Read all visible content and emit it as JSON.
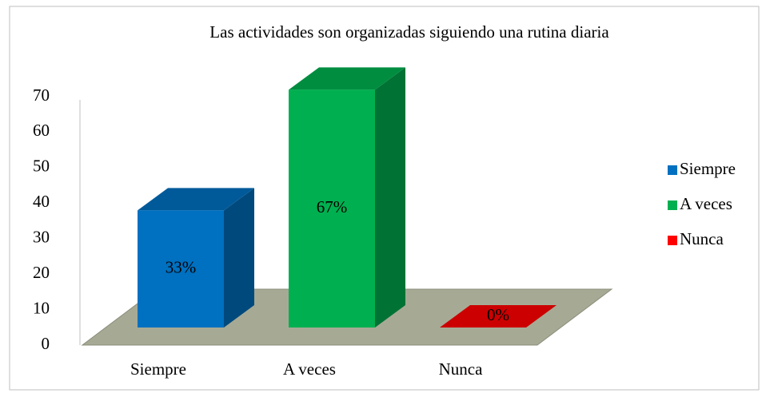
{
  "chart_data": {
    "type": "bar3d",
    "title": "Las actividades son organizadas siguiendo una rutina diaria",
    "categories": [
      "Siempre",
      "A veces",
      "Nunca"
    ],
    "values": [
      33,
      67,
      0
    ],
    "value_labels": [
      "33%",
      "67%",
      "0%"
    ],
    "colors": [
      "#0070c0",
      "#00b050",
      "#ff0000"
    ],
    "ylim": [
      0,
      70
    ],
    "yticks": [
      0,
      10,
      20,
      30,
      40,
      50,
      60,
      70
    ],
    "legend": "right"
  }
}
